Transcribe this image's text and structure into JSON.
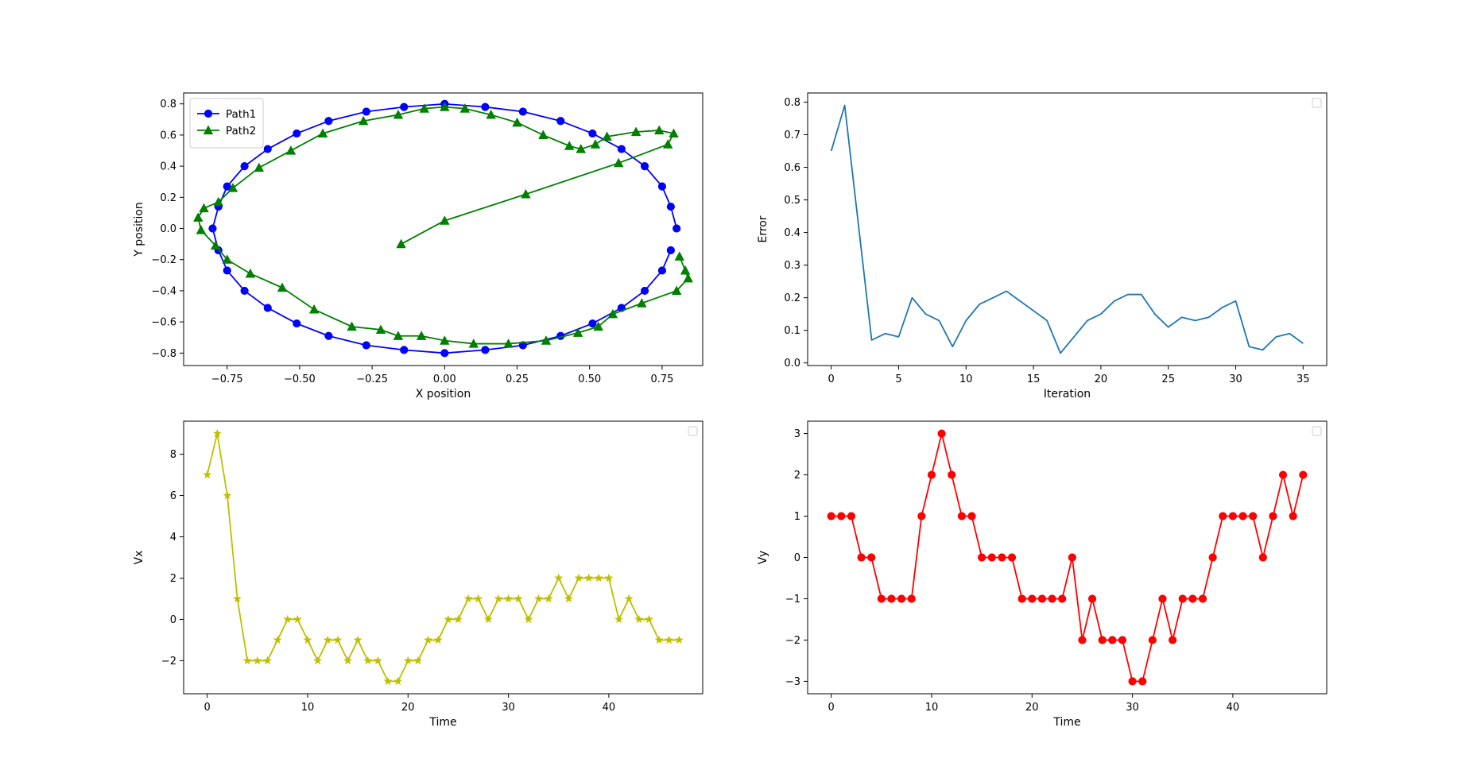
{
  "chart_data": [
    {
      "type": "line",
      "xlabel": "X position",
      "ylabel": "Y position",
      "xlim": [
        -0.9,
        0.89
      ],
      "ylim": [
        -0.88,
        0.87
      ],
      "xticks": [
        -0.75,
        -0.5,
        -0.25,
        0.0,
        0.25,
        0.5,
        0.75
      ],
      "xtick_labels": [
        "−0.75",
        "−0.50",
        "−0.25",
        "0.00",
        "0.25",
        "0.50",
        "0.75"
      ],
      "yticks": [
        -0.8,
        -0.6,
        -0.4,
        -0.2,
        0.0,
        0.2,
        0.4,
        0.6,
        0.8
      ],
      "ytick_labels": [
        "−0.8",
        "−0.6",
        "−0.4",
        "−0.2",
        "0.0",
        "0.2",
        "0.4",
        "0.6",
        "0.8"
      ],
      "legend": "top-left",
      "series": [
        {
          "name": "Path1",
          "color": "#0000ff",
          "marker": "circle",
          "points": [
            [
              0.8,
              0.0
            ],
            [
              0.78,
              0.14
            ],
            [
              0.75,
              0.27
            ],
            [
              0.69,
              0.4
            ],
            [
              0.61,
              0.51
            ],
            [
              0.51,
              0.61
            ],
            [
              0.4,
              0.69
            ],
            [
              0.27,
              0.75
            ],
            [
              0.14,
              0.78
            ],
            [
              0.0,
              0.8
            ],
            [
              -0.14,
              0.78
            ],
            [
              -0.27,
              0.75
            ],
            [
              -0.4,
              0.69
            ],
            [
              -0.51,
              0.61
            ],
            [
              -0.61,
              0.51
            ],
            [
              -0.69,
              0.4
            ],
            [
              -0.75,
              0.27
            ],
            [
              -0.78,
              0.14
            ],
            [
              -0.8,
              0.0
            ],
            [
              -0.78,
              -0.14
            ],
            [
              -0.75,
              -0.27
            ],
            [
              -0.69,
              -0.4
            ],
            [
              -0.61,
              -0.51
            ],
            [
              -0.51,
              -0.61
            ],
            [
              -0.4,
              -0.69
            ],
            [
              -0.27,
              -0.75
            ],
            [
              -0.14,
              -0.78
            ],
            [
              0.0,
              -0.8
            ],
            [
              0.14,
              -0.78
            ],
            [
              0.27,
              -0.75
            ],
            [
              0.4,
              -0.69
            ],
            [
              0.51,
              -0.61
            ],
            [
              0.61,
              -0.51
            ],
            [
              0.69,
              -0.4
            ],
            [
              0.75,
              -0.27
            ],
            [
              0.78,
              -0.14
            ]
          ]
        },
        {
          "name": "Path2",
          "color": "#008000",
          "marker": "triangle",
          "points": [
            [
              -0.15,
              -0.1
            ],
            [
              0.0,
              0.05
            ],
            [
              0.28,
              0.22
            ],
            [
              0.6,
              0.42
            ],
            [
              0.77,
              0.54
            ],
            [
              0.79,
              0.61
            ],
            [
              0.74,
              0.63
            ],
            [
              0.66,
              0.62
            ],
            [
              0.56,
              0.59
            ],
            [
              0.52,
              0.54
            ],
            [
              0.47,
              0.51
            ],
            [
              0.43,
              0.53
            ],
            [
              0.34,
              0.6
            ],
            [
              0.25,
              0.68
            ],
            [
              0.16,
              0.73
            ],
            [
              0.07,
              0.77
            ],
            [
              0.0,
              0.78
            ],
            [
              -0.07,
              0.77
            ],
            [
              -0.16,
              0.73
            ],
            [
              -0.28,
              0.69
            ],
            [
              -0.42,
              0.61
            ],
            [
              -0.53,
              0.5
            ],
            [
              -0.64,
              0.39
            ],
            [
              -0.73,
              0.26
            ],
            [
              -0.78,
              0.17
            ],
            [
              -0.83,
              0.13
            ],
            [
              -0.85,
              0.07
            ],
            [
              -0.84,
              -0.01
            ],
            [
              -0.79,
              -0.11
            ],
            [
              -0.75,
              -0.2
            ],
            [
              -0.67,
              -0.29
            ],
            [
              -0.56,
              -0.38
            ],
            [
              -0.45,
              -0.52
            ],
            [
              -0.32,
              -0.63
            ],
            [
              -0.22,
              -0.65
            ],
            [
              -0.16,
              -0.69
            ],
            [
              -0.08,
              -0.69
            ],
            [
              0.0,
              -0.72
            ],
            [
              0.1,
              -0.74
            ],
            [
              0.22,
              -0.74
            ],
            [
              0.35,
              -0.72
            ],
            [
              0.46,
              -0.67
            ],
            [
              0.53,
              -0.63
            ],
            [
              0.58,
              -0.55
            ],
            [
              0.68,
              -0.48
            ],
            [
              0.8,
              -0.4
            ],
            [
              0.84,
              -0.32
            ],
            [
              0.83,
              -0.27
            ],
            [
              0.81,
              -0.18
            ]
          ]
        }
      ]
    },
    {
      "type": "line",
      "xlabel": "Iteration",
      "ylabel": "Error",
      "xlim": [
        -1.75,
        36.75
      ],
      "ylim": [
        -0.008,
        0.828
      ],
      "xticks": [
        0,
        5,
        10,
        15,
        20,
        25,
        30,
        35
      ],
      "xtick_labels": [
        "0",
        "5",
        "10",
        "15",
        "20",
        "25",
        "30",
        "35"
      ],
      "yticks": [
        0.0,
        0.1,
        0.2,
        0.3,
        0.4,
        0.5,
        0.6,
        0.7,
        0.8
      ],
      "ytick_labels": [
        "0.0",
        "0.1",
        "0.2",
        "0.3",
        "0.4",
        "0.5",
        "0.6",
        "0.7",
        "0.8"
      ],
      "legend": "top-right",
      "series": [
        {
          "color": "#1f77b4",
          "marker": "none",
          "x": [
            0,
            1,
            2,
            3,
            4,
            5,
            6,
            7,
            8,
            9,
            10,
            11,
            12,
            13,
            14,
            15,
            16,
            17,
            18,
            19,
            20,
            21,
            22,
            23,
            24,
            25,
            26,
            27,
            28,
            29,
            30,
            31,
            32,
            33,
            34,
            35
          ],
          "y": [
            0.65,
            0.79,
            0.43,
            0.07,
            0.09,
            0.08,
            0.2,
            0.15,
            0.13,
            0.05,
            0.13,
            0.18,
            0.2,
            0.22,
            0.19,
            0.16,
            0.13,
            0.03,
            0.08,
            0.13,
            0.15,
            0.19,
            0.21,
            0.21,
            0.15,
            0.11,
            0.14,
            0.13,
            0.14,
            0.17,
            0.19,
            0.05,
            0.04,
            0.08,
            0.09,
            0.06
          ]
        }
      ]
    },
    {
      "type": "line",
      "xlabel": "Time",
      "ylabel": "Vx",
      "xlim": [
        -2.35,
        49.35
      ],
      "ylim": [
        -3.6,
        9.6
      ],
      "xticks": [
        0,
        10,
        20,
        30,
        40
      ],
      "xtick_labels": [
        "0",
        "10",
        "20",
        "30",
        "40"
      ],
      "yticks": [
        -2,
        0,
        2,
        4,
        6,
        8
      ],
      "ytick_labels": [
        "−2",
        "0",
        "2",
        "4",
        "6",
        "8"
      ],
      "legend": "top-right",
      "series": [
        {
          "color": "#bfbf00",
          "marker": "star",
          "x": [
            0,
            1,
            2,
            3,
            4,
            5,
            6,
            7,
            8,
            9,
            10,
            11,
            12,
            13,
            14,
            15,
            16,
            17,
            18,
            19,
            20,
            21,
            22,
            23,
            24,
            25,
            26,
            27,
            28,
            29,
            30,
            31,
            32,
            33,
            34,
            35,
            36,
            37,
            38,
            39,
            40,
            41,
            42,
            43,
            44,
            45,
            46,
            47
          ],
          "y": [
            7,
            9,
            6,
            1,
            -2,
            -2,
            -2,
            -1,
            0,
            0,
            -1,
            -2,
            -1,
            -1,
            -2,
            -1,
            -2,
            -2,
            -3,
            -3,
            -2,
            -2,
            -1,
            -1,
            0,
            0,
            1,
            1,
            0,
            1,
            1,
            1,
            0,
            1,
            1,
            2,
            1,
            2,
            2,
            2,
            2,
            0,
            1,
            0,
            0,
            -1,
            -1,
            -1
          ]
        }
      ]
    },
    {
      "type": "line",
      "xlabel": "Time",
      "ylabel": "Vy",
      "xlim": [
        -2.35,
        49.35
      ],
      "ylim": [
        -3.3,
        3.3
      ],
      "xticks": [
        0,
        10,
        20,
        30,
        40
      ],
      "xtick_labels": [
        "0",
        "10",
        "20",
        "30",
        "40"
      ],
      "yticks": [
        -3,
        -2,
        -1,
        0,
        1,
        2,
        3
      ],
      "ytick_labels": [
        "−3",
        "−2",
        "−1",
        "0",
        "1",
        "2",
        "3"
      ],
      "legend": "top-right",
      "series": [
        {
          "color": "#ff0000",
          "marker": "circle",
          "x": [
            0,
            1,
            2,
            3,
            4,
            5,
            6,
            7,
            8,
            9,
            10,
            11,
            12,
            13,
            14,
            15,
            16,
            17,
            18,
            19,
            20,
            21,
            22,
            23,
            24,
            25,
            26,
            27,
            28,
            29,
            30,
            31,
            32,
            33,
            34,
            35,
            36,
            37,
            38,
            39,
            40,
            41,
            42,
            43,
            44,
            45,
            46,
            47
          ],
          "y": [
            1,
            1,
            1,
            0,
            0,
            -1,
            -1,
            -1,
            -1,
            1,
            2,
            3,
            2,
            1,
            1,
            0,
            0,
            0,
            0,
            -1,
            -1,
            -1,
            -1,
            -1,
            0,
            -2,
            -1,
            -2,
            -2,
            -2,
            -3,
            -3,
            -2,
            -1,
            -2,
            -1,
            -1,
            -1,
            0,
            1,
            1,
            1,
            1,
            0,
            1,
            2,
            1,
            2
          ]
        }
      ]
    }
  ]
}
